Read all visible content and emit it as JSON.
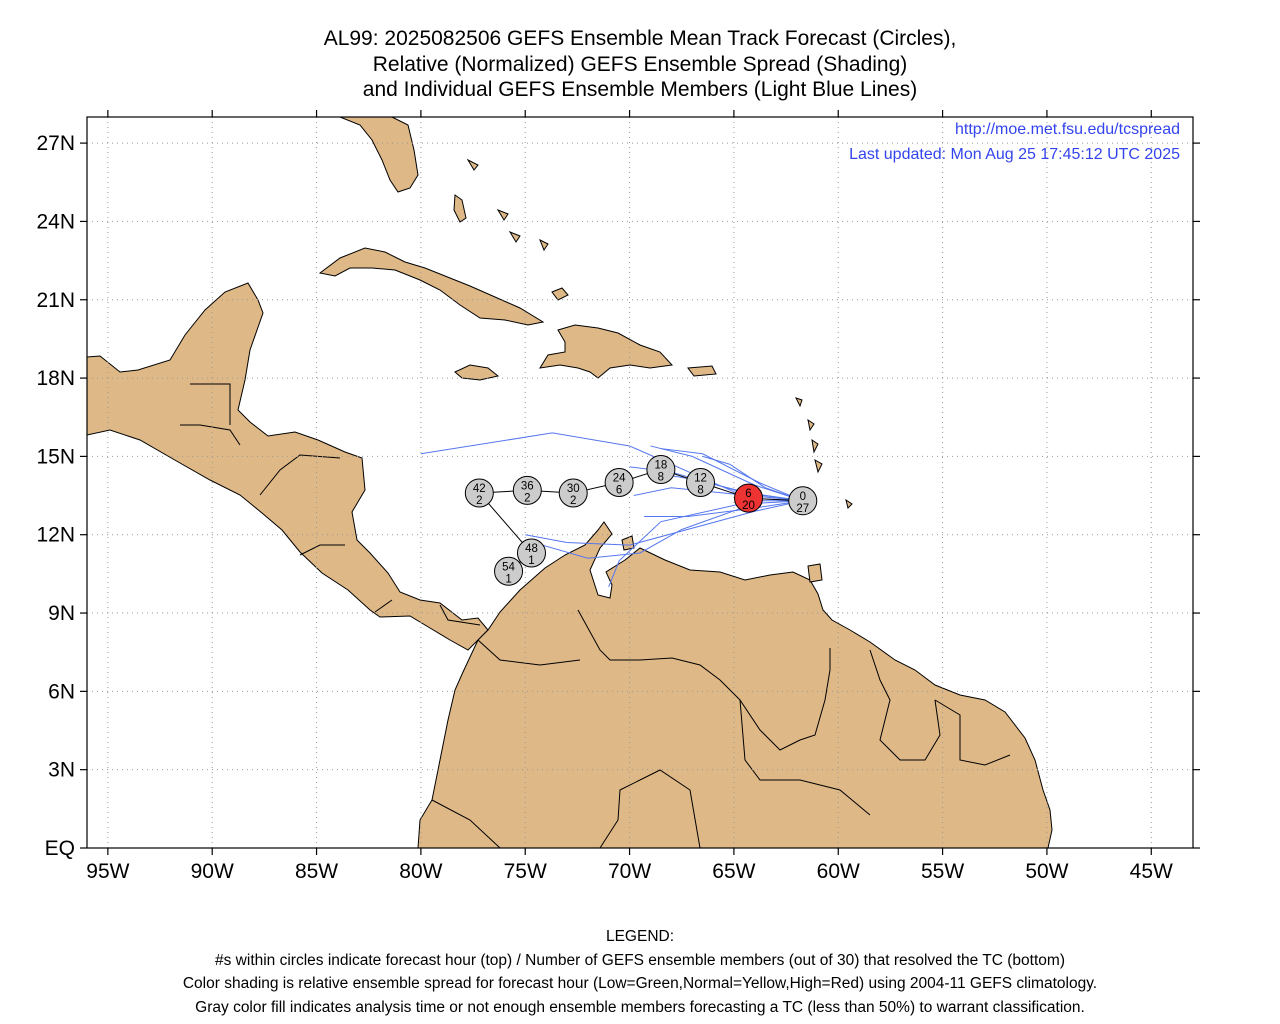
{
  "title": {
    "line1": "AL99: 2025082506 GEFS Ensemble Mean Track Forecast (Circles),",
    "line2": "Relative (Normalized) GEFS Ensemble Spread (Shading)",
    "line3": "and Individual GEFS Ensemble Members (Light Blue Lines)"
  },
  "credit": {
    "url": "http://moe.met.fsu.edu/tcspread",
    "updated": "Last updated: Mon Aug 25 17:45:12 UTC 2025",
    "color": "#3344ee"
  },
  "colors": {
    "land": "#deb887",
    "ocean": "#ffffff",
    "member_lines": "#5577ee",
    "circle_gray": "#cccccc",
    "circle_red": "#ee3333"
  },
  "axes": {
    "lon_range": [
      -96,
      -43
    ],
    "lat_range": [
      0,
      28
    ],
    "lon_ticks": [
      {
        "value": -95,
        "label": "95W"
      },
      {
        "value": -90,
        "label": "90W"
      },
      {
        "value": -85,
        "label": "85W"
      },
      {
        "value": -80,
        "label": "80W"
      },
      {
        "value": -75,
        "label": "75W"
      },
      {
        "value": -70,
        "label": "70W"
      },
      {
        "value": -65,
        "label": "65W"
      },
      {
        "value": -60,
        "label": "60W"
      },
      {
        "value": -55,
        "label": "55W"
      },
      {
        "value": -50,
        "label": "50W"
      },
      {
        "value": -45,
        "label": "45W"
      }
    ],
    "lat_ticks": [
      {
        "value": 0,
        "label": "EQ"
      },
      {
        "value": 3,
        "label": "3N"
      },
      {
        "value": 6,
        "label": "6N"
      },
      {
        "value": 9,
        "label": "9N"
      },
      {
        "value": 12,
        "label": "12N"
      },
      {
        "value": 15,
        "label": "15N"
      },
      {
        "value": 18,
        "label": "18N"
      },
      {
        "value": 21,
        "label": "21N"
      },
      {
        "value": 24,
        "label": "24N"
      },
      {
        "value": 27,
        "label": "27N"
      }
    ],
    "grid": "dotted"
  },
  "mean_track": [
    {
      "hour": "0",
      "members": "27",
      "lon": -61.7,
      "lat": 13.3,
      "fill": "gray"
    },
    {
      "hour": "6",
      "members": "20",
      "lon": -64.3,
      "lat": 13.4,
      "fill": "red"
    },
    {
      "hour": "12",
      "members": "8",
      "lon": -66.6,
      "lat": 14.0,
      "fill": "gray"
    },
    {
      "hour": "18",
      "members": "8",
      "lon": -68.5,
      "lat": 14.5,
      "fill": "gray"
    },
    {
      "hour": "24",
      "members": "6",
      "lon": -70.5,
      "lat": 14.0,
      "fill": "gray"
    },
    {
      "hour": "30",
      "members": "2",
      "lon": -72.7,
      "lat": 13.6,
      "fill": "gray"
    },
    {
      "hour": "36",
      "members": "2",
      "lon": -74.9,
      "lat": 13.7,
      "fill": "gray"
    },
    {
      "hour": "42",
      "members": "2",
      "lon": -77.2,
      "lat": 13.6,
      "fill": "gray"
    },
    {
      "hour": "48",
      "members": "1",
      "lon": -74.7,
      "lat": 11.3,
      "fill": "gray"
    },
    {
      "hour": "54",
      "members": "1",
      "lon": -75.8,
      "lat": 10.6,
      "fill": "gray"
    }
  ],
  "members": [
    [
      [
        -61.7,
        13.3
      ],
      [
        -64.3,
        13.4
      ],
      [
        -70.0,
        15.4
      ],
      [
        -73.7,
        15.9
      ],
      [
        -80.0,
        15.1
      ]
    ],
    [
      [
        -61.7,
        13.3
      ],
      [
        -64.0,
        13.9
      ],
      [
        -67.0,
        15.0
      ],
      [
        -69.0,
        15.4
      ]
    ],
    [
      [
        -61.7,
        13.3
      ],
      [
        -63.8,
        14.0
      ],
      [
        -66.5,
        15.1
      ],
      [
        -68.5,
        15.3
      ]
    ],
    [
      [
        -61.7,
        13.3
      ],
      [
        -64.5,
        13.6
      ],
      [
        -68.0,
        14.4
      ],
      [
        -70.0,
        14.6
      ]
    ],
    [
      [
        -61.7,
        13.3
      ],
      [
        -64.2,
        13.0
      ],
      [
        -67.2,
        12.7
      ],
      [
        -69.3,
        12.7
      ]
    ],
    [
      [
        -61.7,
        13.3
      ],
      [
        -64.0,
        13.2
      ],
      [
        -67.5,
        12.2
      ],
      [
        -69.5,
        11.3
      ],
      [
        -72.0,
        11.1
      ],
      [
        -74.6,
        11.7
      ]
    ],
    [
      [
        -61.7,
        13.3
      ],
      [
        -64.0,
        13.3
      ],
      [
        -68.5,
        12.5
      ],
      [
        -70.5,
        11.0
      ],
      [
        -71.0,
        10.0
      ]
    ],
    [
      [
        -61.7,
        13.3
      ],
      [
        -64.3,
        13.6
      ],
      [
        -66.8,
        14.1
      ],
      [
        -68.3,
        14.3
      ]
    ],
    [
      [
        -61.7,
        13.3
      ],
      [
        -63.5,
        13.8
      ],
      [
        -65.2,
        14.7
      ],
      [
        -66.5,
        15.0
      ]
    ],
    [
      [
        -61.7,
        13.3
      ],
      [
        -65.5,
        13.6
      ],
      [
        -68.0,
        13.8
      ],
      [
        -69.8,
        13.5
      ]
    ],
    [
      [
        -61.7,
        13.3
      ],
      [
        -64.0,
        12.9
      ],
      [
        -70.0,
        11.6
      ],
      [
        -73.0,
        11.7
      ],
      [
        -75.0,
        12.0
      ]
    ]
  ],
  "map_notes": "Caribbean Sea, Central America and northern South America with country borders"
}
